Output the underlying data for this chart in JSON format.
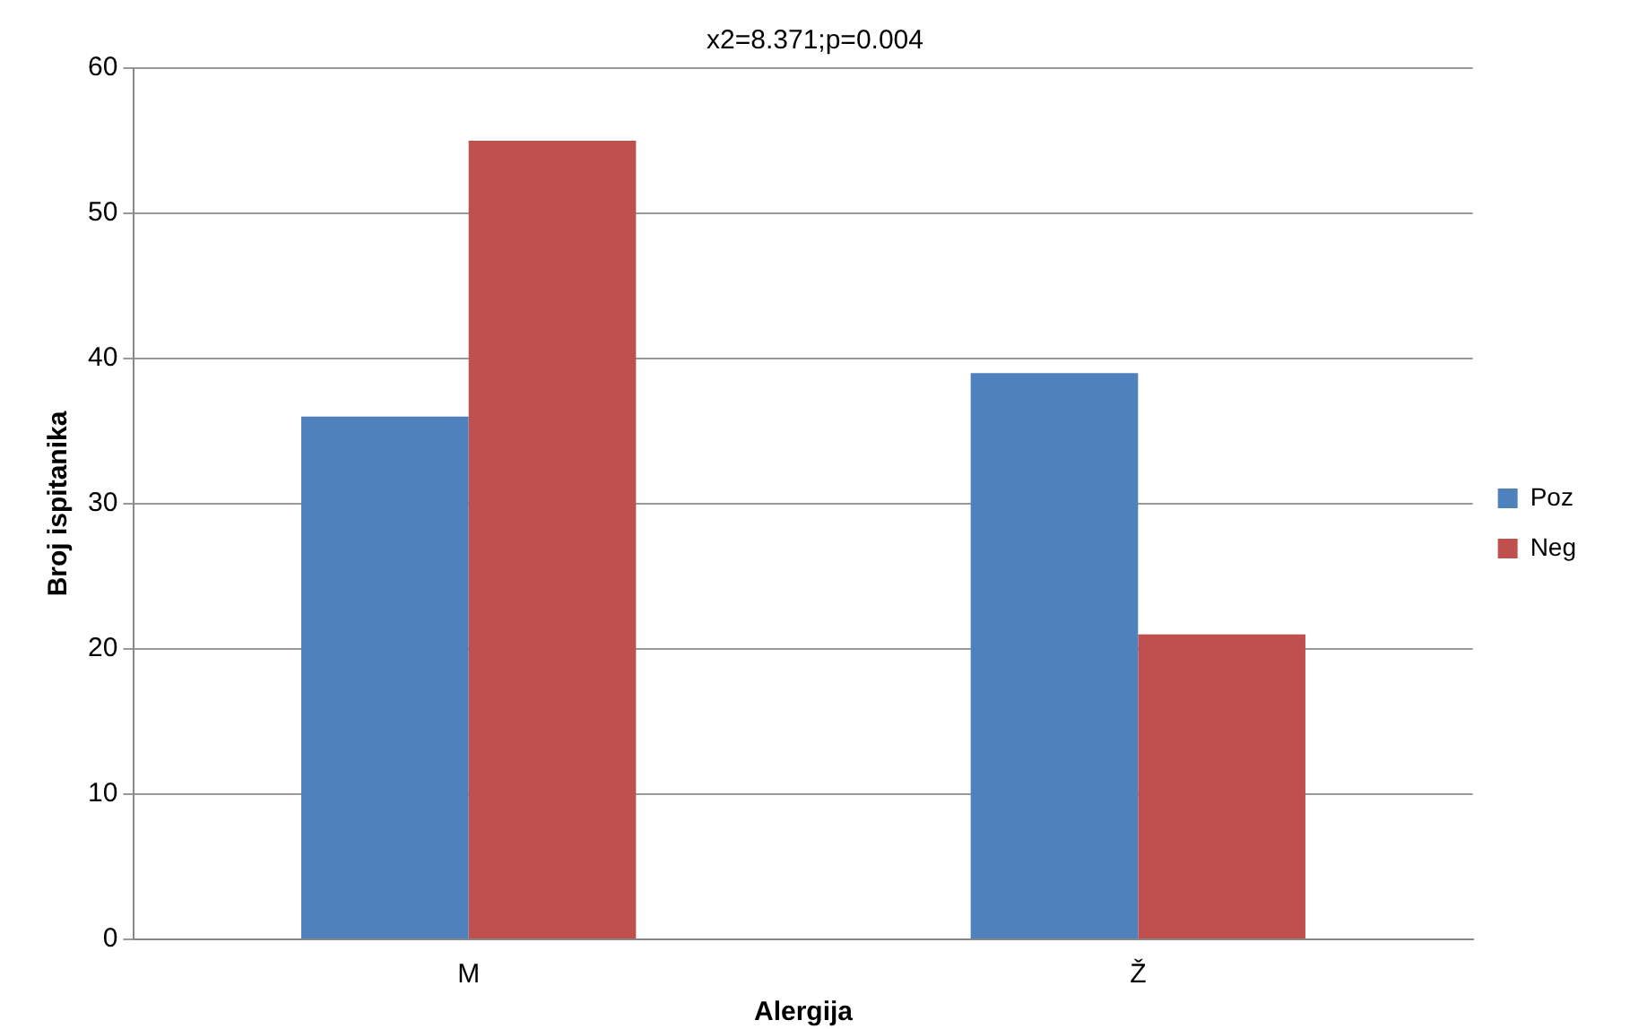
{
  "chart_data": {
    "type": "bar",
    "title": "x2=8.371;p=0.004",
    "xlabel": "Alergija",
    "ylabel": "Broj ispitanika",
    "categories": [
      "M",
      "Ž"
    ],
    "series": [
      {
        "name": "Poz",
        "color": "#4f81bd",
        "values": [
          36,
          39
        ]
      },
      {
        "name": "Neg",
        "color": "#c0504d",
        "values": [
          55,
          21
        ]
      }
    ],
    "ylim": [
      0,
      60
    ],
    "yticks": [
      0,
      10,
      20,
      30,
      40,
      50,
      60
    ],
    "grid": "y",
    "legend": "right"
  }
}
